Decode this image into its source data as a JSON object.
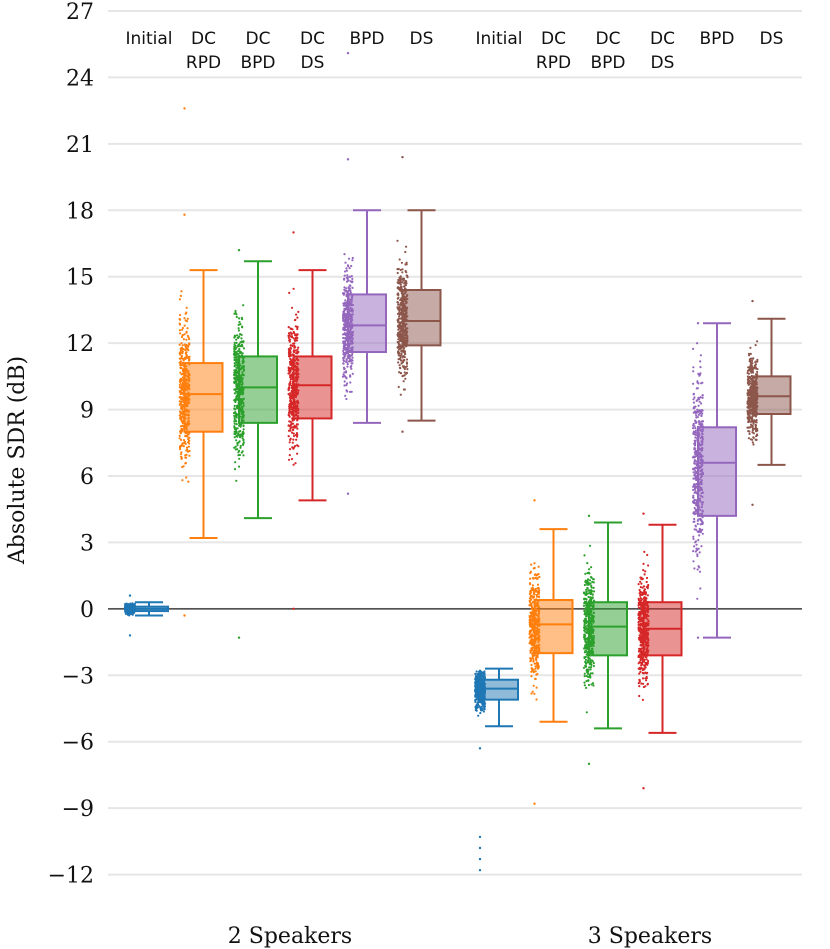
{
  "chart_data": {
    "type": "box",
    "ylabel": "Absolute SDR (dB)",
    "ylim": [
      -13,
      27
    ],
    "yticks": [
      -12,
      -9,
      -6,
      -3,
      0,
      3,
      6,
      9,
      12,
      15,
      18,
      21,
      24,
      27
    ],
    "ytick_labels": [
      "−12",
      "−9",
      "−6",
      "−3",
      "0",
      "3",
      "6",
      "9",
      "12",
      "15",
      "18",
      "21",
      "24",
      "27"
    ],
    "zero_line": 0,
    "grid": true,
    "methods": [
      {
        "key": "initial",
        "label": [
          "Initial"
        ],
        "color": "#1f77b4"
      },
      {
        "key": "dcrpd",
        "label": [
          "DC",
          "RPD"
        ],
        "color": "#ff7f0e"
      },
      {
        "key": "dcbpd",
        "label": [
          "DC",
          "BPD"
        ],
        "color": "#2ca02c"
      },
      {
        "key": "dcds",
        "label": [
          "DC",
          "DS"
        ],
        "color": "#d62728"
      },
      {
        "key": "bpd",
        "label": [
          "BPD"
        ],
        "color": "#9467bd"
      },
      {
        "key": "ds",
        "label": [
          "DS"
        ],
        "color": "#8c564b"
      }
    ],
    "groups": [
      {
        "name": "2 Speakers",
        "boxes": [
          {
            "method": "initial",
            "min": -0.3,
            "q1": -0.1,
            "median": 0.0,
            "q3": 0.1,
            "max": 0.3,
            "scatter_lo": -1.2,
            "scatter_hi": 0.6,
            "outliers": []
          },
          {
            "method": "dcrpd",
            "min": 3.2,
            "q1": 8.0,
            "median": 9.7,
            "q3": 11.1,
            "max": 15.3,
            "scatter_lo": -0.3,
            "scatter_hi": 17.8,
            "outliers": [
              22.6
            ]
          },
          {
            "method": "dcbpd",
            "min": 4.1,
            "q1": 8.4,
            "median": 10.0,
            "q3": 11.4,
            "max": 15.7,
            "scatter_lo": -1.3,
            "scatter_hi": 16.2,
            "outliers": []
          },
          {
            "method": "dcds",
            "min": 4.9,
            "q1": 8.6,
            "median": 10.1,
            "q3": 11.4,
            "max": 15.3,
            "scatter_lo": 0.0,
            "scatter_hi": 17.0,
            "outliers": []
          },
          {
            "method": "bpd",
            "min": 8.4,
            "q1": 11.6,
            "median": 12.8,
            "q3": 14.2,
            "max": 18.0,
            "scatter_lo": 5.2,
            "scatter_hi": 20.3,
            "outliers": [
              25.1
            ]
          },
          {
            "method": "ds",
            "min": 8.5,
            "q1": 11.9,
            "median": 13.0,
            "q3": 14.4,
            "max": 18.0,
            "scatter_lo": 8.0,
            "scatter_hi": 20.4,
            "outliers": []
          }
        ]
      },
      {
        "name": "3 Speakers",
        "boxes": [
          {
            "method": "initial",
            "min": -5.3,
            "q1": -4.1,
            "median": -3.6,
            "q3": -3.2,
            "max": -2.7,
            "scatter_lo": -6.3,
            "scatter_hi": -2.8,
            "outliers": [
              -10.3,
              -10.8,
              -11.3,
              -11.8
            ]
          },
          {
            "method": "dcrpd",
            "min": -5.1,
            "q1": -2.0,
            "median": -0.7,
            "q3": 0.4,
            "max": 3.6,
            "scatter_lo": -8.8,
            "scatter_hi": 4.9,
            "outliers": []
          },
          {
            "method": "dcbpd",
            "min": -5.4,
            "q1": -2.1,
            "median": -0.8,
            "q3": 0.3,
            "max": 3.9,
            "scatter_lo": -7.0,
            "scatter_hi": 4.2,
            "outliers": []
          },
          {
            "method": "dcds",
            "min": -5.6,
            "q1": -2.1,
            "median": -0.9,
            "q3": 0.3,
            "max": 3.8,
            "scatter_lo": -8.1,
            "scatter_hi": 4.3,
            "outliers": []
          },
          {
            "method": "bpd",
            "min": -1.3,
            "q1": 4.2,
            "median": 6.6,
            "q3": 8.2,
            "max": 12.9,
            "scatter_lo": -1.3,
            "scatter_hi": 12.9,
            "outliers": []
          },
          {
            "method": "ds",
            "min": 6.5,
            "q1": 8.8,
            "median": 9.6,
            "q3": 10.5,
            "max": 13.1,
            "scatter_lo": 4.7,
            "scatter_hi": 13.9,
            "outliers": []
          }
        ]
      }
    ]
  }
}
